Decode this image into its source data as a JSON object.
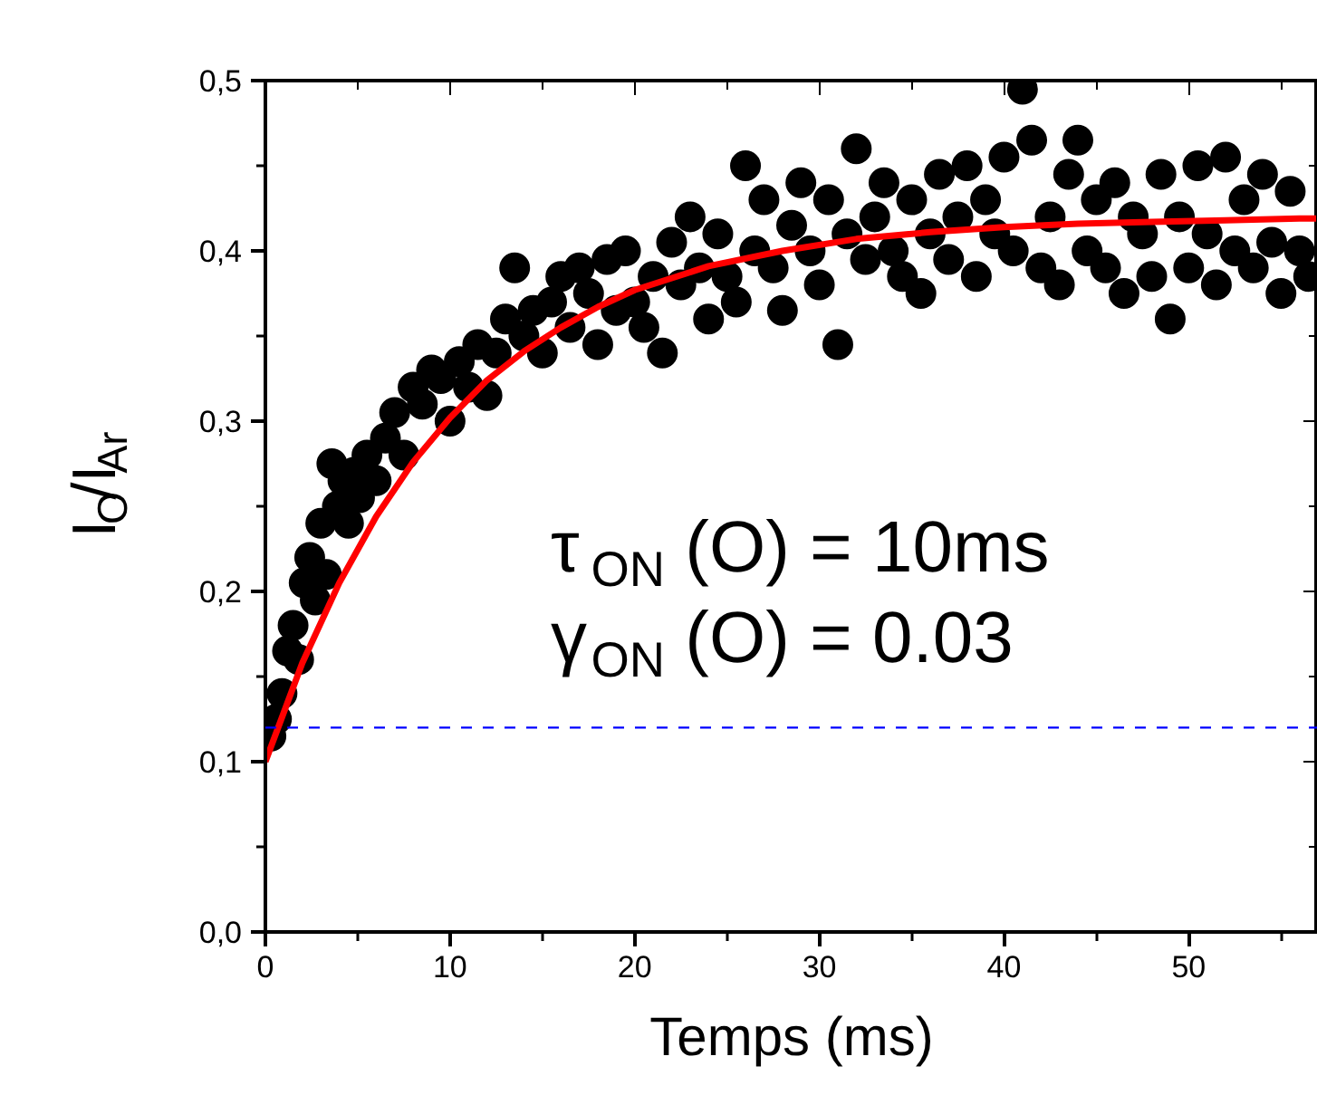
{
  "chart_data": {
    "type": "scatter",
    "xlabel": "Temps (ms)",
    "ylabel": "I$_{O}$/I$_{Ar}$",
    "xlim": [
      0,
      57
    ],
    "ylim": [
      0,
      0.5
    ],
    "xticks": [
      0,
      10,
      20,
      30,
      40,
      50
    ],
    "yticks": [
      {
        "value": 0,
        "label": "0,0"
      },
      {
        "value": 0.1,
        "label": "0,1"
      },
      {
        "value": 0.2,
        "label": "0,2"
      },
      {
        "value": 0.3,
        "label": "0,3"
      },
      {
        "value": 0.4,
        "label": "0,4"
      },
      {
        "value": 0.5,
        "label": "0,5"
      }
    ],
    "grid": false,
    "series": [
      {
        "marker": "circle",
        "color": "#000000",
        "x": [
          0.3,
          0.6,
          0.9,
          1.2,
          1.5,
          1.8,
          2.1,
          2.4,
          2.7,
          3.0,
          3.3,
          3.6,
          3.9,
          4.2,
          4.5,
          4.8,
          5.1,
          5.5,
          6.0,
          6.5,
          7.0,
          7.5,
          8.0,
          8.5,
          9.0,
          9.5,
          10.0,
          10.5,
          11,
          11.5,
          12,
          12.5,
          13,
          13.5,
          14,
          14.5,
          15,
          15.5,
          16,
          16.5,
          17,
          17.5,
          18,
          18.5,
          19,
          19.5,
          20,
          20.5,
          21,
          21.5,
          22,
          22.5,
          23,
          23.5,
          24,
          24.5,
          25,
          25.5,
          26,
          26.5,
          27,
          27.5,
          28,
          28.5,
          29,
          29.5,
          30,
          30.5,
          31,
          31.5,
          32,
          32.5,
          33,
          33.5,
          34,
          34.5,
          35,
          35.5,
          36,
          36.5,
          37,
          37.5,
          38,
          38.5,
          39,
          39.5,
          40,
          40.5,
          41,
          41.5,
          42,
          42.5,
          43,
          43.5,
          44,
          44.5,
          45,
          45.5,
          46,
          46.5,
          47,
          47.5,
          48,
          48.5,
          49,
          49.5,
          50,
          50.5,
          51,
          51.5,
          52,
          52.5,
          53,
          53.5,
          54,
          54.5,
          55,
          55.5,
          56,
          56.5
        ],
        "values": [
          0.115,
          0.125,
          0.14,
          0.165,
          0.18,
          0.16,
          0.205,
          0.22,
          0.195,
          0.24,
          0.21,
          0.275,
          0.25,
          0.265,
          0.24,
          0.27,
          0.255,
          0.28,
          0.265,
          0.29,
          0.305,
          0.28,
          0.32,
          0.31,
          0.33,
          0.325,
          0.3,
          0.335,
          0.32,
          0.345,
          0.315,
          0.34,
          0.36,
          0.39,
          0.35,
          0.365,
          0.34,
          0.37,
          0.385,
          0.355,
          0.39,
          0.375,
          0.345,
          0.395,
          0.365,
          0.4,
          0.37,
          0.355,
          0.385,
          0.34,
          0.405,
          0.38,
          0.42,
          0.39,
          0.36,
          0.41,
          0.385,
          0.37,
          0.45,
          0.4,
          0.43,
          0.39,
          0.365,
          0.415,
          0.44,
          0.4,
          0.38,
          0.43,
          0.345,
          0.41,
          0.46,
          0.395,
          0.42,
          0.44,
          0.4,
          0.385,
          0.43,
          0.375,
          0.41,
          0.445,
          0.395,
          0.42,
          0.45,
          0.385,
          0.43,
          0.41,
          0.455,
          0.4,
          0.495,
          0.465,
          0.39,
          0.42,
          0.38,
          0.445,
          0.465,
          0.4,
          0.43,
          0.39,
          0.44,
          0.375,
          0.42,
          0.41,
          0.385,
          0.445,
          0.36,
          0.42,
          0.39,
          0.45,
          0.41,
          0.38,
          0.455,
          0.4,
          0.43,
          0.39,
          0.445,
          0.405,
          0.375,
          0.435,
          0.4,
          0.385
        ]
      },
      {
        "type": "line",
        "color": "#ff0000",
        "x": [
          0,
          2,
          4,
          6,
          8,
          10,
          12,
          14,
          16,
          18,
          20,
          24,
          28,
          32,
          36,
          40,
          44,
          48,
          52,
          56,
          57
        ],
        "values": [
          0.1,
          0.158,
          0.205,
          0.244,
          0.276,
          0.302,
          0.324,
          0.341,
          0.355,
          0.367,
          0.377,
          0.391,
          0.4,
          0.407,
          0.411,
          0.414,
          0.416,
          0.417,
          0.418,
          0.419,
          0.419
        ]
      }
    ],
    "ref_lines": [
      {
        "axis": "y",
        "value": 0.12,
        "color": "#0000ff",
        "line_style": "dashed"
      }
    ],
    "annotations": [
      "τ$_{ON}$ (O) = 10ms",
      "γ$_{ON}$ (O) = 0.03"
    ]
  }
}
